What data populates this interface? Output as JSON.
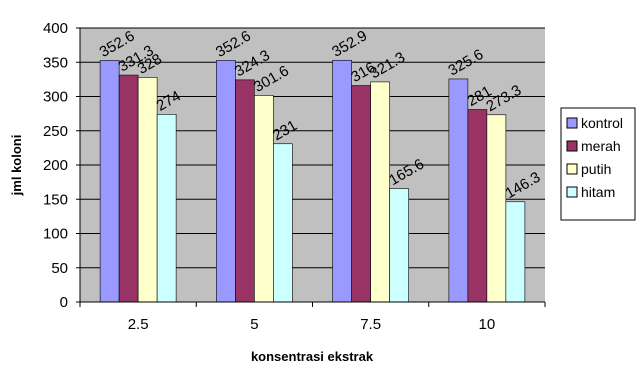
{
  "chart_data": {
    "type": "bar",
    "categories": [
      "2.5",
      "5",
      "7.5",
      "10"
    ],
    "series": [
      {
        "name": "kontrol",
        "values": [
          352.6,
          352.6,
          352.9,
          325.6
        ],
        "color": "#9999FF"
      },
      {
        "name": "merah",
        "values": [
          331.3,
          324.3,
          316,
          281
        ],
        "color": "#993366"
      },
      {
        "name": "putih",
        "values": [
          328,
          301.6,
          321.3,
          273.3
        ],
        "color": "#FFFFCC"
      },
      {
        "name": "hitam",
        "values": [
          274,
          231,
          165.6,
          146.3
        ],
        "color": "#CCFFFF"
      }
    ],
    "data_labels": [
      [
        "352.6",
        "331.3",
        "328",
        "274"
      ],
      [
        "352.6",
        "324.3",
        "301.6",
        "231"
      ],
      [
        "352.9",
        "316",
        "321.3",
        "165.6"
      ],
      [
        "325.6",
        "281",
        "273.3",
        "146.3"
      ]
    ],
    "title": "",
    "xlabel": "konsentrasi ekstrak",
    "ylabel": "jml koloni",
    "ylim": [
      0,
      400
    ],
    "yticks": [
      "0",
      "50",
      "100",
      "150",
      "200",
      "250",
      "300",
      "350",
      "400"
    ],
    "grid": true,
    "plot_background": "#C0C0C0",
    "legend_position": "right"
  }
}
